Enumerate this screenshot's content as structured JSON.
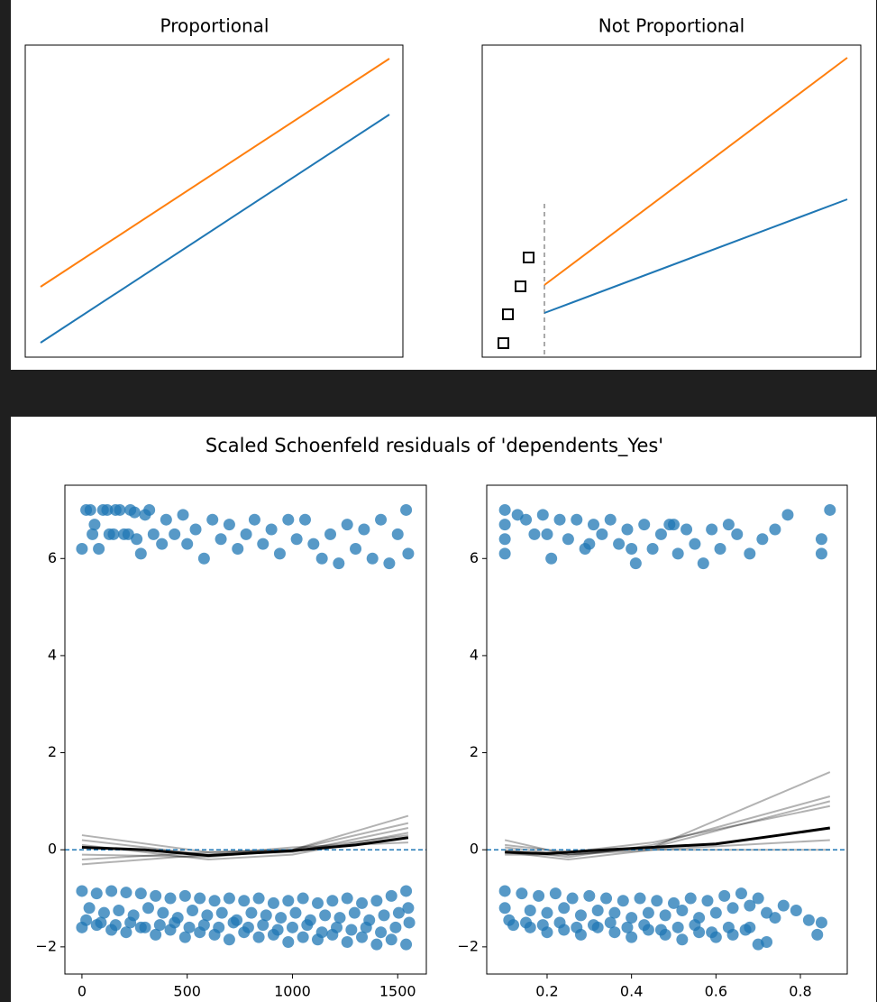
{
  "top": {
    "panels": [
      {
        "title": "Proportional"
      },
      {
        "title": "Not Proportional"
      }
    ]
  },
  "suptitle": "Scaled Schoenfeld residuals of 'dependents_Yes'",
  "chart_data": [
    {
      "type": "scatter",
      "xlim": [
        -81,
        1636
      ],
      "ylim": [
        -2.56,
        7.51
      ],
      "xticks": [
        0,
        500,
        1000,
        1500
      ],
      "yticks": [
        {
          "value": -2,
          "label": "−2"
        },
        0,
        2,
        4,
        6
      ],
      "color": "#1f77b4",
      "scatter": {
        "x": [
          0,
          20,
          40,
          60,
          80,
          100,
          120,
          130,
          160,
          180,
          200,
          230,
          250,
          260,
          280,
          300,
          320,
          340,
          380,
          400,
          440,
          480,
          500,
          540,
          580,
          620,
          660,
          700,
          740,
          780,
          820,
          860,
          900,
          940,
          980,
          1020,
          1060,
          1100,
          1140,
          1180,
          1220,
          1260,
          1300,
          1340,
          1380,
          1420,
          1460,
          1500,
          1540,
          1550,
          50,
          150,
          220,
          0,
          70,
          140,
          210,
          280,
          350,
          420,
          490,
          560,
          630,
          700,
          770,
          840,
          910,
          980,
          1050,
          1120,
          1190,
          1260,
          1330,
          1400,
          1470,
          1540,
          35,
          105,
          175,
          245,
          315,
          385,
          455,
          525,
          595,
          665,
          735,
          805,
          875,
          945,
          1015,
          1085,
          1155,
          1225,
          1295,
          1365,
          1435,
          1505,
          1550,
          0,
          70,
          140,
          210,
          280,
          350,
          420,
          490,
          560,
          630,
          700,
          770,
          840,
          910,
          980,
          1050,
          1120,
          1190,
          1260,
          1330,
          1400,
          1470,
          1540,
          20,
          90,
          160,
          230,
          300,
          370,
          440,
          510,
          580,
          650,
          720,
          790,
          860,
          930,
          1000,
          1070,
          1140,
          1210,
          1280,
          1350,
          1420,
          1490,
          1555
        ],
        "y": [
          6.2,
          7.0,
          7.0,
          6.7,
          6.2,
          7.0,
          7.0,
          6.5,
          7.0,
          7.0,
          6.5,
          7.0,
          6.95,
          6.4,
          6.1,
          6.9,
          7.0,
          6.5,
          6.3,
          6.8,
          6.5,
          6.9,
          6.3,
          6.6,
          6.0,
          6.8,
          6.4,
          6.7,
          6.2,
          6.5,
          6.8,
          6.3,
          6.6,
          6.1,
          6.8,
          6.4,
          6.8,
          6.3,
          6.0,
          6.5,
          5.9,
          6.7,
          6.2,
          6.6,
          6.0,
          6.8,
          5.9,
          6.5,
          7.0,
          6.1,
          6.5,
          6.5,
          6.5,
          -0.85,
          -0.9,
          -0.85,
          -0.88,
          -0.9,
          -0.95,
          -1.0,
          -0.95,
          -1.0,
          -1.05,
          -1.0,
          -1.05,
          -1.0,
          -1.1,
          -1.05,
          -1.0,
          -1.1,
          -1.05,
          -1.0,
          -1.1,
          -1.05,
          -0.95,
          -0.85,
          -1.2,
          -1.3,
          -1.25,
          -1.35,
          -1.2,
          -1.3,
          -1.4,
          -1.25,
          -1.35,
          -1.3,
          -1.45,
          -1.3,
          -1.35,
          -1.4,
          -1.3,
          -1.45,
          -1.35,
          -1.4,
          -1.3,
          -1.45,
          -1.35,
          -1.3,
          -1.2,
          -1.6,
          -1.55,
          -1.65,
          -1.7,
          -1.6,
          -1.75,
          -1.65,
          -1.8,
          -1.7,
          -1.75,
          -1.85,
          -1.7,
          -1.8,
          -1.75,
          -1.9,
          -1.8,
          -1.85,
          -1.75,
          -1.9,
          -1.8,
          -1.95,
          -1.85,
          -1.95,
          -1.45,
          -1.5,
          -1.55,
          -1.5,
          -1.6,
          -1.55,
          -1.5,
          -1.6,
          -1.55,
          -1.6,
          -1.5,
          -1.6,
          -1.55,
          -1.65,
          -1.6,
          -1.55,
          -1.7,
          -1.6,
          -1.65,
          -1.6,
          -1.7,
          -1.6,
          -1.5
        ]
      },
      "lowess": {
        "x": [
          0,
          300,
          600,
          1000,
          1300,
          1550
        ],
        "values": [
          0.05,
          0.0,
          -0.12,
          -0.02,
          0.1,
          0.25
        ]
      },
      "bootstrap": [
        {
          "x": [
            0,
            600,
            1000,
            1550
          ],
          "values": [
            0.3,
            -0.05,
            0.0,
            0.7
          ]
        },
        {
          "x": [
            0,
            600,
            1000,
            1550
          ],
          "values": [
            0.2,
            -0.1,
            -0.05,
            0.45
          ]
        },
        {
          "x": [
            0,
            600,
            1000,
            1550
          ],
          "values": [
            -0.1,
            -0.15,
            0.0,
            0.3
          ]
        },
        {
          "x": [
            0,
            600,
            1000,
            1550
          ],
          "values": [
            -0.3,
            -0.1,
            0.05,
            0.15
          ]
        },
        {
          "x": [
            0,
            600,
            1000,
            1550
          ],
          "values": [
            0.1,
            -0.2,
            -0.1,
            0.35
          ]
        },
        {
          "x": [
            0,
            600,
            1000,
            1550
          ],
          "values": [
            -0.2,
            -0.05,
            0.0,
            0.55
          ]
        }
      ],
      "hline": 0
    },
    {
      "type": "scatter",
      "xlim": [
        0.057,
        0.911
      ],
      "ylim": [
        -2.56,
        7.51
      ],
      "xticks": [
        0.2,
        0.4,
        0.6,
        0.8
      ],
      "yticks": [
        {
          "value": -2,
          "label": "−2"
        },
        0,
        2,
        4,
        6
      ],
      "color": "#1f77b4",
      "scatter": {
        "x": [
          0.1,
          0.1,
          0.1,
          0.1,
          0.13,
          0.15,
          0.17,
          0.19,
          0.21,
          0.23,
          0.25,
          0.27,
          0.29,
          0.31,
          0.33,
          0.35,
          0.37,
          0.39,
          0.41,
          0.43,
          0.45,
          0.47,
          0.49,
          0.51,
          0.53,
          0.55,
          0.57,
          0.59,
          0.61,
          0.63,
          0.65,
          0.68,
          0.71,
          0.74,
          0.77,
          0.85,
          0.85,
          0.87,
          0.2,
          0.3,
          0.4,
          0.5,
          0.1,
          0.14,
          0.18,
          0.22,
          0.26,
          0.3,
          0.34,
          0.38,
          0.42,
          0.46,
          0.5,
          0.54,
          0.58,
          0.62,
          0.66,
          0.7,
          0.1,
          0.16,
          0.2,
          0.24,
          0.28,
          0.32,
          0.36,
          0.4,
          0.44,
          0.48,
          0.52,
          0.56,
          0.6,
          0.64,
          0.68,
          0.72,
          0.12,
          0.16,
          0.2,
          0.24,
          0.28,
          0.32,
          0.36,
          0.4,
          0.44,
          0.48,
          0.52,
          0.56,
          0.6,
          0.64,
          0.68,
          0.72,
          0.11,
          0.15,
          0.19,
          0.23,
          0.27,
          0.31,
          0.35,
          0.39,
          0.43,
          0.47,
          0.51,
          0.55,
          0.59,
          0.63,
          0.67,
          0.7,
          0.74,
          0.76,
          0.79,
          0.82,
          0.84,
          0.85
        ],
        "y": [
          7.0,
          6.7,
          6.4,
          6.1,
          6.9,
          6.8,
          6.5,
          6.9,
          6.0,
          6.8,
          6.4,
          6.8,
          6.2,
          6.7,
          6.5,
          6.8,
          6.3,
          6.6,
          5.9,
          6.7,
          6.2,
          6.5,
          6.7,
          6.1,
          6.6,
          6.3,
          5.9,
          6.6,
          6.2,
          6.7,
          6.5,
          6.1,
          6.4,
          6.6,
          6.9,
          6.4,
          6.1,
          7.0,
          6.5,
          6.3,
          6.2,
          6.7,
          -0.85,
          -0.9,
          -0.95,
          -0.9,
          -1.0,
          -0.95,
          -1.0,
          -1.05,
          -1.0,
          -1.05,
          -1.1,
          -1.0,
          -1.05,
          -0.95,
          -0.9,
          -1.0,
          -1.2,
          -1.25,
          -1.3,
          -1.2,
          -1.35,
          -1.25,
          -1.3,
          -1.4,
          -1.3,
          -1.35,
          -1.25,
          -1.4,
          -1.3,
          -1.2,
          -1.15,
          -1.3,
          -1.55,
          -1.6,
          -1.7,
          -1.65,
          -1.75,
          -1.6,
          -1.7,
          -1.8,
          -1.65,
          -1.75,
          -1.85,
          -1.7,
          -1.8,
          -1.75,
          -1.6,
          -1.9,
          -1.45,
          -1.5,
          -1.55,
          -1.5,
          -1.6,
          -1.55,
          -1.5,
          -1.6,
          -1.55,
          -1.65,
          -1.6,
          -1.55,
          -1.7,
          -1.6,
          -1.65,
          -1.95,
          -1.4,
          -1.15,
          -1.25,
          -1.45,
          -1.75,
          -1.5
        ]
      },
      "lowess": {
        "x": [
          0.1,
          0.2,
          0.3,
          0.45,
          0.6,
          0.75,
          0.87
        ],
        "values": [
          -0.05,
          -0.08,
          -0.02,
          0.05,
          0.12,
          0.3,
          0.45
        ]
      },
      "bootstrap": [
        {
          "x": [
            0.1,
            0.25,
            0.45,
            0.87
          ],
          "values": [
            0.2,
            -0.1,
            0.05,
            1.6
          ]
        },
        {
          "x": [
            0.1,
            0.25,
            0.45,
            0.87
          ],
          "values": [
            0.0,
            -0.15,
            0.1,
            1.1
          ]
        },
        {
          "x": [
            0.1,
            0.25,
            0.45,
            0.87
          ],
          "values": [
            -0.1,
            -0.1,
            0.0,
            0.2
          ]
        },
        {
          "x": [
            0.1,
            0.25,
            0.45,
            0.87
          ],
          "values": [
            0.1,
            -0.05,
            0.15,
            0.9
          ]
        },
        {
          "x": [
            0.1,
            0.25,
            0.45,
            0.87
          ],
          "values": [
            -0.05,
            -0.2,
            0.0,
            0.0
          ]
        },
        {
          "x": [
            0.1,
            0.25,
            0.45,
            0.87
          ],
          "values": [
            0.05,
            -0.1,
            0.05,
            1.0
          ]
        }
      ],
      "hline": 0
    }
  ]
}
